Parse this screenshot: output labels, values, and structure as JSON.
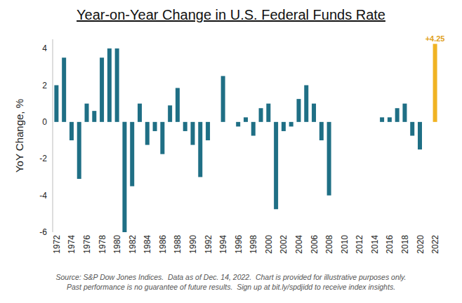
{
  "chart_data": {
    "type": "bar",
    "title": "Year-on-Year Change in U.S. Federal Funds Rate",
    "y_label": "YoY Change, %",
    "footnote": [
      "Source: S&P Dow Jones Indices.  Data as of Dec. 14, 2022.  Chart is provided for illustrative purposes only.",
      "Past performance is no guarantee of future results.  Sign up at bit.ly/spdjidd to receive index insights."
    ],
    "categories": [
      "1972",
      null,
      "1974",
      null,
      "1976",
      null,
      "1978",
      null,
      "1980",
      null,
      "1982",
      null,
      "1984",
      null,
      "1986",
      null,
      "1988",
      null,
      "1990",
      null,
      "1992",
      null,
      "1994",
      null,
      "1996",
      null,
      "1998",
      null,
      "2000",
      null,
      "2002",
      null,
      "2004",
      null,
      "2006",
      null,
      "2008",
      null,
      "2010",
      null,
      "2012",
      null,
      "2014",
      null,
      "2016",
      null,
      "2018",
      null,
      "2020",
      null,
      "2022"
    ],
    "values": [
      2.0,
      3.5,
      -1.0,
      -3.1,
      1.0,
      0.6,
      3.5,
      4.0,
      4.0,
      -6.0,
      -3.5,
      1.0,
      -1.25,
      -0.5,
      -1.75,
      0.9,
      1.85,
      -0.5,
      -1.25,
      -3.0,
      -1.0,
      0,
      2.5,
      0,
      -0.25,
      0.25,
      -0.75,
      0.75,
      1.0,
      -4.75,
      -0.5,
      -0.25,
      1.25,
      2.0,
      1.0,
      -1.0,
      -4.0,
      0,
      0,
      0,
      0,
      0,
      0,
      0.25,
      0.25,
      0.75,
      1.0,
      -0.75,
      -1.5,
      0,
      4.25
    ],
    "colors": [
      "#1f6f85",
      "#1f6f85",
      "#1f6f85",
      "#1f6f85",
      "#1f6f85",
      "#1f6f85",
      "#1f6f85",
      "#1f6f85",
      "#1f6f85",
      "#1f6f85",
      "#1f6f85",
      "#1f6f85",
      "#1f6f85",
      "#1f6f85",
      "#1f6f85",
      "#1f6f85",
      "#1f6f85",
      "#1f6f85",
      "#1f6f85",
      "#1f6f85",
      "#1f6f85",
      "#1f6f85",
      "#1f6f85",
      "#1f6f85",
      "#1f6f85",
      "#1f6f85",
      "#1f6f85",
      "#1f6f85",
      "#1f6f85",
      "#1f6f85",
      "#1f6f85",
      "#1f6f85",
      "#1f6f85",
      "#1f6f85",
      "#1f6f85",
      "#1f6f85",
      "#1f6f85",
      "#1f6f85",
      "#1f6f85",
      "#1f6f85",
      "#1f6f85",
      "#1f6f85",
      "#1f6f85",
      "#1f6f85",
      "#1f6f85",
      "#1f6f85",
      "#1f6f85",
      "#1f6f85",
      "#1f6f85",
      "#1f6f85",
      "#f0b323"
    ],
    "ylim": [
      -6,
      4.5
    ],
    "yticks": [
      -6,
      -4,
      -2,
      0,
      2,
      4
    ],
    "grid": false,
    "annotations": [
      {
        "category": "2022",
        "value": 4.25,
        "label": "+4.25",
        "color": "#e0a020"
      }
    ]
  }
}
